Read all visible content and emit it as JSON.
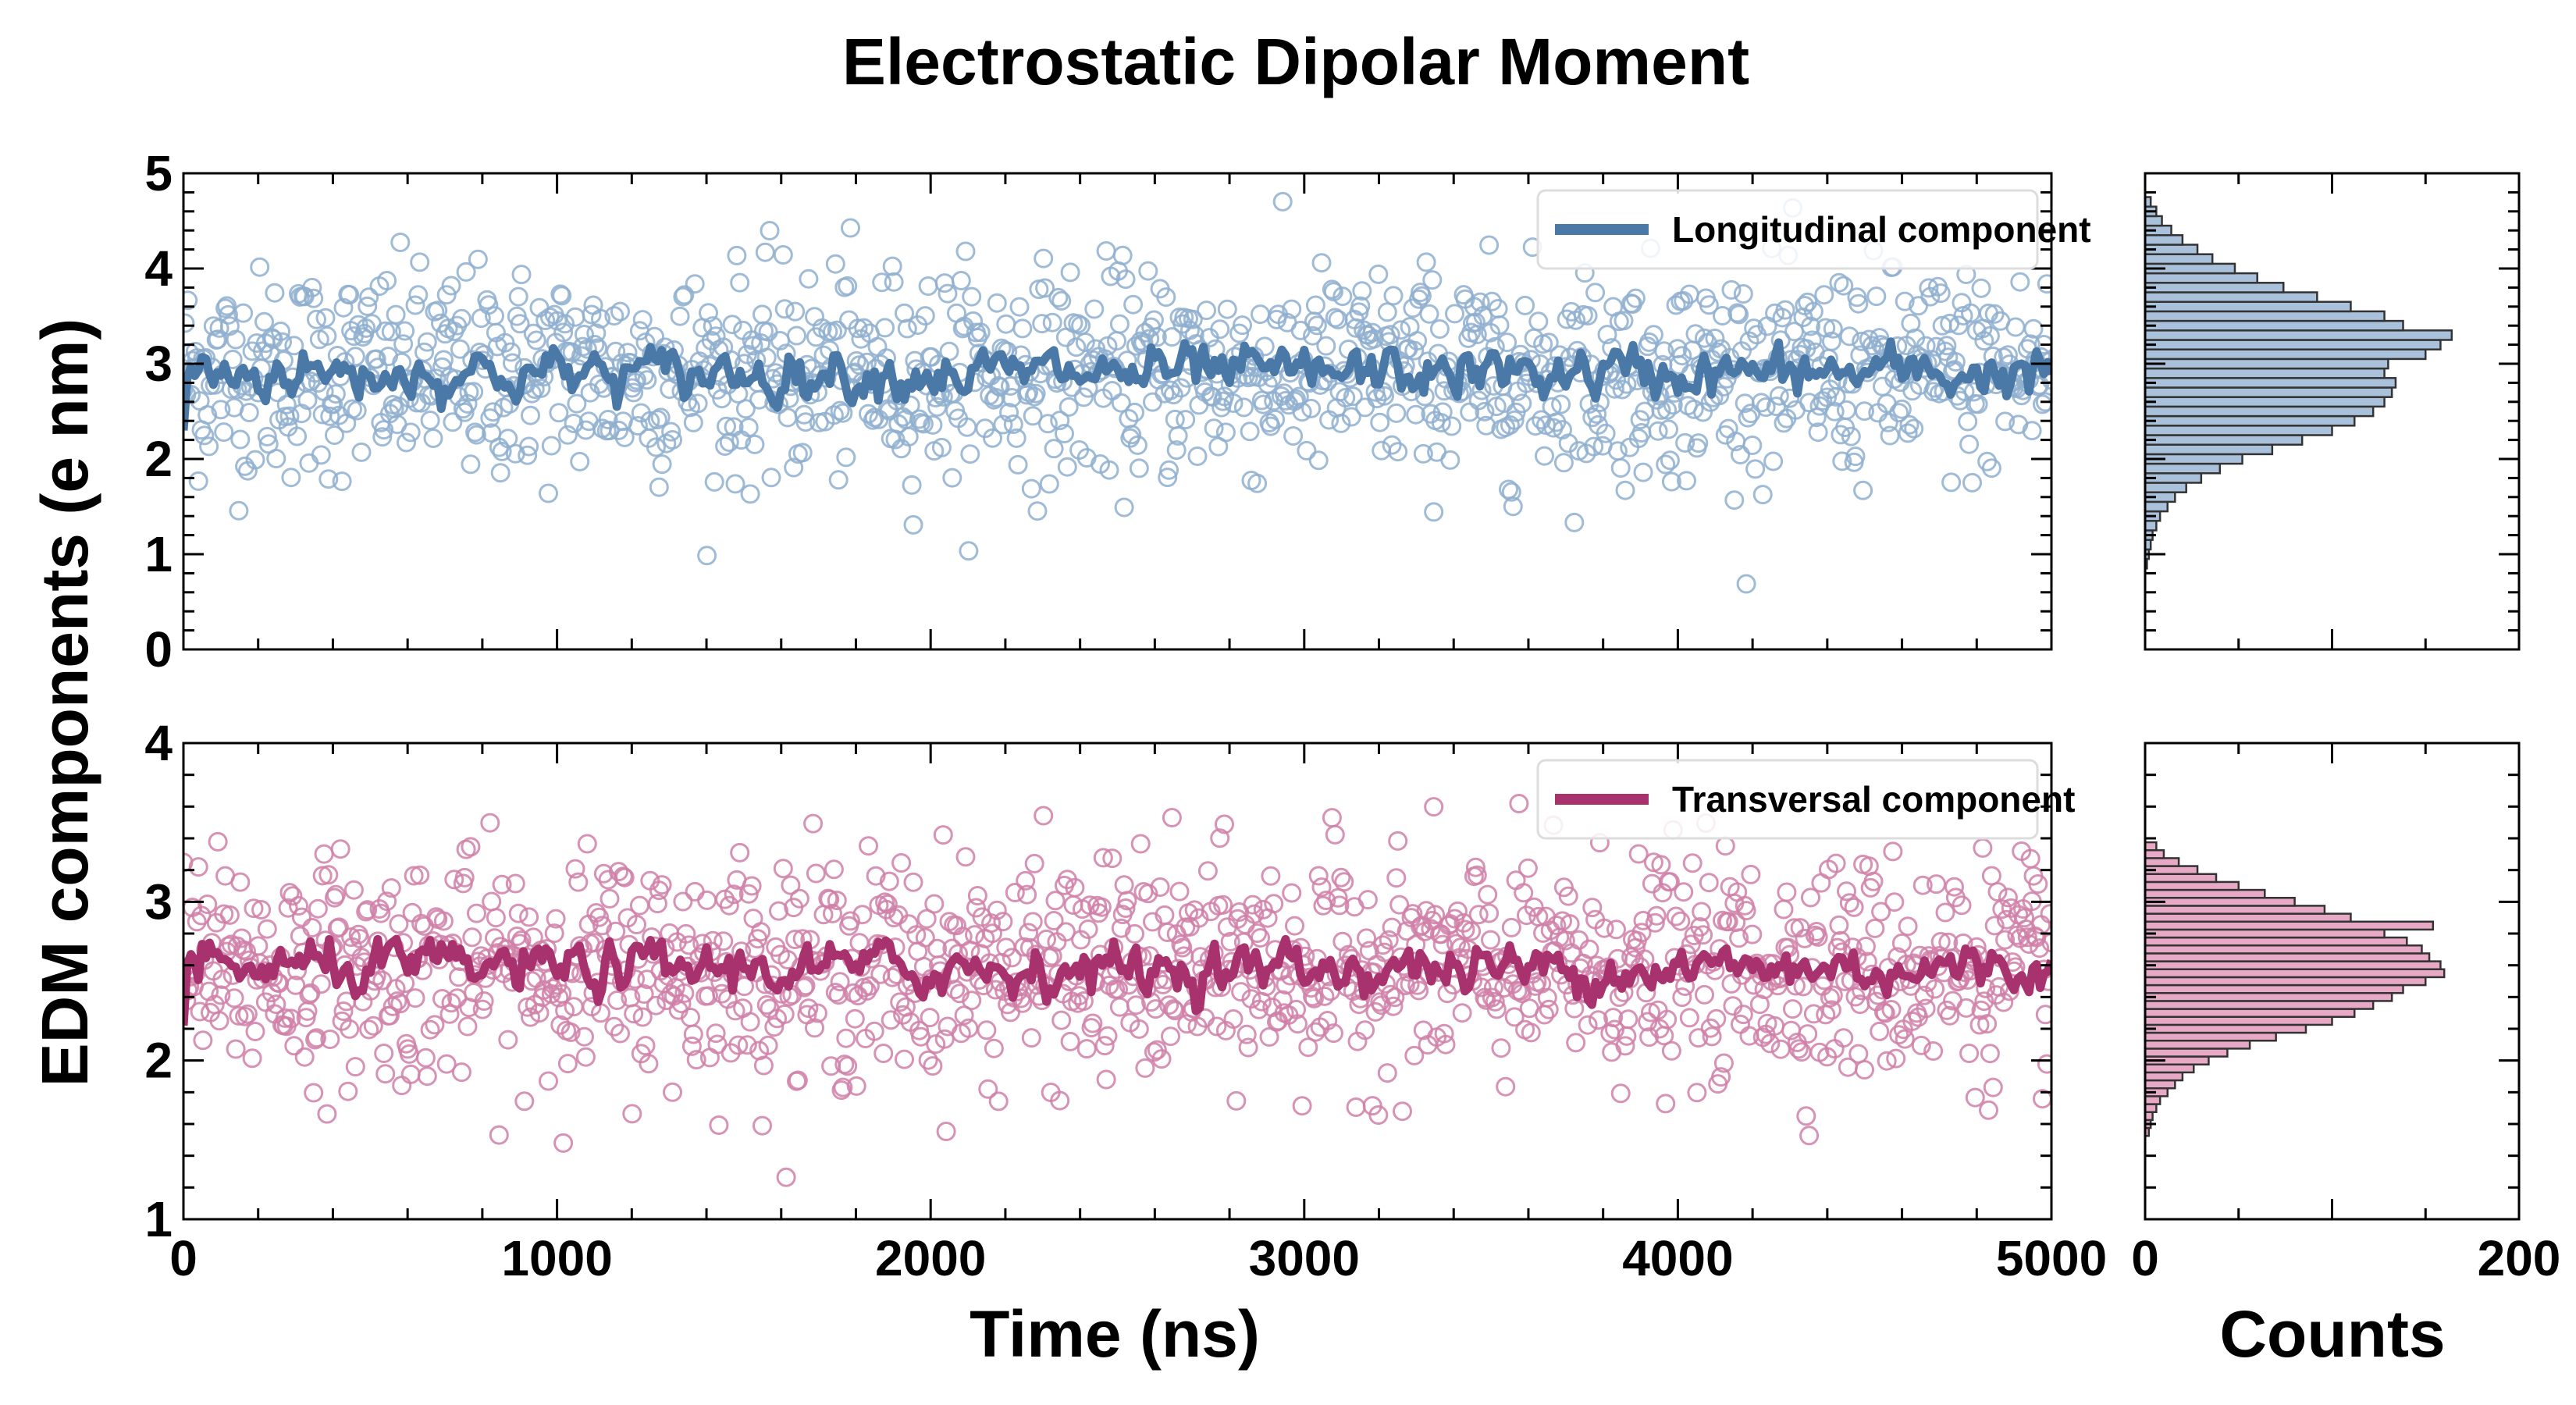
{
  "chart_data": {
    "title": "Electrostatic Dipolar Moment",
    "ylabel": "EDM components (e nm)",
    "xlabel": "Time (ns)",
    "hist_xlabel": "Counts",
    "type": "scatter",
    "panels": [
      {
        "name": "longitudinal",
        "legend": "Longitudinal component",
        "color": "#4a79a8",
        "marker_color": "#8fafcf",
        "hist_fill": "#a9c1da",
        "xlim": [
          0,
          5000
        ],
        "ylim": [
          0,
          5
        ],
        "xticks": [
          0,
          1000,
          2000,
          3000,
          4000,
          5000
        ],
        "yticks": [
          0,
          1,
          2,
          3,
          4,
          5
        ],
        "mean": 2.9,
        "spread": 0.55,
        "n_points": 1250,
        "smooth_amplitude": 0.25,
        "hist": {
          "bin_centers": [
            0.9,
            1.0,
            1.1,
            1.2,
            1.3,
            1.4,
            1.5,
            1.6,
            1.7,
            1.8,
            1.9,
            2.0,
            2.1,
            2.2,
            2.3,
            2.4,
            2.5,
            2.6,
            2.7,
            2.8,
            2.9,
            3.0,
            3.1,
            3.2,
            3.3,
            3.4,
            3.5,
            3.6,
            3.7,
            3.8,
            3.9,
            4.0,
            4.1,
            4.2,
            4.3,
            4.4,
            4.5,
            4.6,
            4.7
          ],
          "counts": [
            1,
            2,
            3,
            4,
            6,
            8,
            12,
            16,
            22,
            30,
            40,
            52,
            68,
            84,
            100,
            112,
            122,
            128,
            132,
            134,
            128,
            130,
            150,
            158,
            164,
            138,
            128,
            110,
            92,
            74,
            60,
            48,
            36,
            28,
            20,
            14,
            9,
            6,
            3
          ]
        }
      },
      {
        "name": "transversal",
        "legend": "Transversal component",
        "color": "#a8326e",
        "marker_color": "#d080a8",
        "hist_fill": "#e8a9c6",
        "xlim": [
          0,
          5000
        ],
        "ylim": [
          1,
          4
        ],
        "xticks": [
          0,
          1000,
          2000,
          3000,
          4000,
          5000
        ],
        "yticks": [
          1,
          2,
          3,
          4
        ],
        "mean": 2.58,
        "spread": 0.35,
        "n_points": 1250,
        "smooth_amplitude": 0.15,
        "hist": {
          "bin_centers": [
            1.55,
            1.6,
            1.65,
            1.7,
            1.75,
            1.8,
            1.85,
            1.9,
            1.95,
            2.0,
            2.05,
            2.1,
            2.15,
            2.2,
            2.25,
            2.3,
            2.35,
            2.4,
            2.45,
            2.5,
            2.55,
            2.6,
            2.65,
            2.7,
            2.75,
            2.8,
            2.85,
            2.9,
            2.95,
            3.0,
            3.05,
            3.1,
            3.15,
            3.2,
            3.25,
            3.3,
            3.35
          ],
          "counts": [
            2,
            3,
            4,
            6,
            8,
            12,
            16,
            20,
            26,
            34,
            44,
            56,
            70,
            86,
            100,
            112,
            122,
            132,
            138,
            150,
            160,
            158,
            152,
            148,
            140,
            128,
            154,
            110,
            96,
            80,
            64,
            50,
            38,
            28,
            18,
            10,
            6
          ]
        }
      }
    ],
    "hist_xlim": [
      0,
      200
    ],
    "hist_xticks": [
      0,
      200
    ]
  }
}
